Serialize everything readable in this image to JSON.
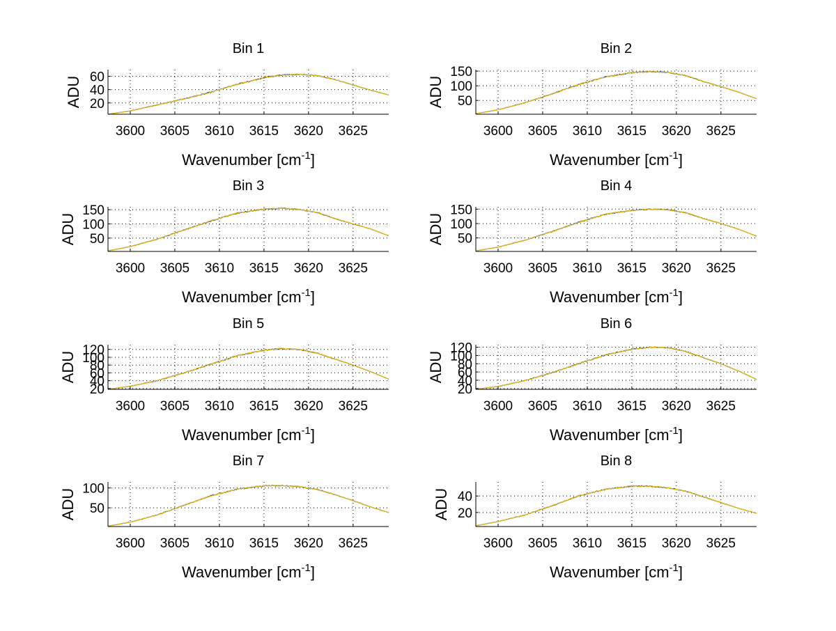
{
  "chart_data": [
    {
      "type": "line",
      "title": "Bin 1",
      "xlabel": "Wavenumber [cm-1]",
      "ylabel": "ADU",
      "xlim": [
        3597.5,
        3629
      ],
      "ylim": [
        3,
        70
      ],
      "xticks": [
        3600,
        3605,
        3610,
        3615,
        3620,
        3625
      ],
      "yticks": [
        20,
        40,
        60
      ],
      "grid": true,
      "series": [
        {
          "color": "#1f3fa0",
          "x": [
            3597.5,
            3600,
            3603,
            3606,
            3609,
            3612,
            3615,
            3617,
            3619,
            3621,
            3623,
            3625,
            3627,
            3629
          ],
          "y": [
            3,
            8,
            17,
            26,
            36,
            48,
            58,
            62,
            63,
            61,
            55,
            47,
            39,
            32
          ]
        },
        {
          "color": "#e8b800",
          "x": [
            3597.5,
            3600,
            3603,
            3606,
            3609,
            3612,
            3615,
            3617,
            3619,
            3621,
            3623,
            3625,
            3627,
            3629
          ],
          "y": [
            3,
            8,
            17,
            26,
            36,
            48,
            58,
            62,
            63,
            61,
            55,
            47,
            39,
            32
          ]
        }
      ]
    },
    {
      "type": "line",
      "title": "Bin 2",
      "xlabel": "Wavenumber [cm-1]",
      "ylabel": "ADU",
      "xlim": [
        3597.5,
        3629
      ],
      "ylim": [
        3,
        155
      ],
      "xticks": [
        3600,
        3605,
        3610,
        3615,
        3620,
        3625
      ],
      "yticks": [
        50,
        100,
        150
      ],
      "grid": true,
      "series": [
        {
          "color": "#1f3fa0",
          "x": [
            3597.5,
            3600,
            3603,
            3606,
            3609,
            3612,
            3615,
            3617,
            3619,
            3621,
            3623,
            3625,
            3627,
            3629
          ],
          "y": [
            5,
            18,
            42,
            72,
            104,
            130,
            145,
            148,
            146,
            135,
            115,
            97,
            78,
            56
          ]
        },
        {
          "color": "#e8b800",
          "x": [
            3597.5,
            3600,
            3603,
            3606,
            3609,
            3612,
            3615,
            3617,
            3619,
            3621,
            3623,
            3625,
            3627,
            3629
          ],
          "y": [
            5,
            18,
            42,
            72,
            104,
            130,
            145,
            148,
            146,
            135,
            115,
            97,
            78,
            56
          ]
        }
      ]
    },
    {
      "type": "line",
      "title": "Bin 3",
      "xlabel": "Wavenumber [cm-1]",
      "ylabel": "ADU",
      "xlim": [
        3597.5,
        3629
      ],
      "ylim": [
        3,
        160
      ],
      "xticks": [
        3600,
        3605,
        3610,
        3615,
        3620,
        3625
      ],
      "yticks": [
        50,
        100,
        150
      ],
      "grid": true,
      "series": [
        {
          "color": "#1f3fa0",
          "x": [
            3597.5,
            3600,
            3603,
            3606,
            3609,
            3612,
            3615,
            3617,
            3619,
            3621,
            3623,
            3625,
            3627,
            3629
          ],
          "y": [
            5,
            20,
            46,
            78,
            110,
            138,
            152,
            155,
            151,
            140,
            118,
            100,
            82,
            58
          ]
        },
        {
          "color": "#e8b800",
          "x": [
            3597.5,
            3600,
            3603,
            3606,
            3609,
            3612,
            3615,
            3617,
            3619,
            3621,
            3623,
            3625,
            3627,
            3629
          ],
          "y": [
            5,
            20,
            46,
            78,
            110,
            138,
            152,
            155,
            151,
            140,
            118,
            100,
            82,
            58
          ]
        }
      ]
    },
    {
      "type": "line",
      "title": "Bin 4",
      "xlabel": "Wavenumber [cm-1]",
      "ylabel": "ADU",
      "xlim": [
        3597.5,
        3629
      ],
      "ylim": [
        3,
        158
      ],
      "xticks": [
        3600,
        3605,
        3610,
        3615,
        3620,
        3625
      ],
      "yticks": [
        50,
        100,
        150
      ],
      "grid": true,
      "series": [
        {
          "color": "#1f3fa0",
          "x": [
            3597.5,
            3600,
            3603,
            3606,
            3609,
            3612,
            3615,
            3617,
            3619,
            3621,
            3623,
            3625,
            3627,
            3629
          ],
          "y": [
            5,
            18,
            42,
            72,
            104,
            132,
            146,
            150,
            148,
            138,
            118,
            100,
            80,
            56
          ]
        },
        {
          "color": "#e8b800",
          "x": [
            3597.5,
            3600,
            3603,
            3606,
            3609,
            3612,
            3615,
            3617,
            3619,
            3621,
            3623,
            3625,
            3627,
            3629
          ],
          "y": [
            5,
            18,
            42,
            72,
            104,
            132,
            146,
            150,
            148,
            138,
            118,
            100,
            80,
            56
          ]
        }
      ]
    },
    {
      "type": "line",
      "title": "Bin 5",
      "xlabel": "Wavenumber [cm-1]",
      "ylabel": "ADU",
      "xlim": [
        3597.5,
        3629
      ],
      "ylim": [
        18,
        132
      ],
      "xticks": [
        3600,
        3605,
        3610,
        3615,
        3620,
        3625
      ],
      "yticks": [
        20,
        40,
        60,
        80,
        100,
        120
      ],
      "yticklabels": [
        "20",
        "40",
        "60",
        "80",
        "100",
        "120"
      ],
      "grid": true,
      "series": [
        {
          "color": "#1f3fa0",
          "x": [
            3597.5,
            3600,
            3603,
            3606,
            3609,
            3612,
            3615,
            3617,
            3619,
            3621,
            3623,
            3625,
            3627,
            3629
          ],
          "y": [
            18,
            26,
            40,
            60,
            82,
            104,
            118,
            122,
            120,
            110,
            95,
            80,
            63,
            44
          ]
        },
        {
          "color": "#e8b800",
          "x": [
            3597.5,
            3600,
            3603,
            3606,
            3609,
            3612,
            3615,
            3617,
            3619,
            3621,
            3623,
            3625,
            3627,
            3629
          ],
          "y": [
            18,
            26,
            40,
            60,
            82,
            104,
            118,
            122,
            120,
            110,
            95,
            80,
            63,
            44
          ]
        }
      ]
    },
    {
      "type": "line",
      "title": "Bin 6",
      "xlabel": "Wavenumber [cm-1]",
      "ylabel": "ADU",
      "xlim": [
        3597.5,
        3629
      ],
      "ylim": [
        18,
        126
      ],
      "xticks": [
        3600,
        3605,
        3610,
        3615,
        3620,
        3625
      ],
      "yticks": [
        20,
        40,
        60,
        80,
        100,
        120
      ],
      "yticklabels": [
        "20",
        "40",
        "60",
        "80",
        "100",
        "120"
      ],
      "grid": true,
      "series": [
        {
          "color": "#1f3fa0",
          "x": [
            3597.5,
            3600,
            3603,
            3606,
            3609,
            3612,
            3615,
            3617,
            3619,
            3621,
            3623,
            3625,
            3627,
            3629
          ],
          "y": [
            18,
            25,
            39,
            58,
            80,
            101,
            115,
            120,
            119,
            110,
            95,
            80,
            62,
            42
          ]
        },
        {
          "color": "#e8b800",
          "x": [
            3597.5,
            3600,
            3603,
            3606,
            3609,
            3612,
            3615,
            3617,
            3619,
            3621,
            3623,
            3625,
            3627,
            3629
          ],
          "y": [
            18,
            25,
            39,
            58,
            80,
            101,
            115,
            120,
            119,
            110,
            95,
            80,
            62,
            42
          ]
        }
      ]
    },
    {
      "type": "line",
      "title": "Bin 7",
      "xlabel": "Wavenumber [cm-1]",
      "ylabel": "ADU",
      "xlim": [
        3597.5,
        3629
      ],
      "ylim": [
        3,
        115
      ],
      "xticks": [
        3600,
        3605,
        3610,
        3615,
        3620,
        3625
      ],
      "yticks": [
        50,
        100
      ],
      "grid": true,
      "series": [
        {
          "color": "#1f3fa0",
          "x": [
            3597.5,
            3600,
            3603,
            3606,
            3609,
            3612,
            3615,
            3617,
            3619,
            3621,
            3623,
            3625,
            3627,
            3629
          ],
          "y": [
            4,
            14,
            32,
            56,
            80,
            97,
            105,
            106,
            103,
            96,
            83,
            68,
            52,
            38
          ]
        },
        {
          "color": "#e8b800",
          "x": [
            3597.5,
            3600,
            3603,
            3606,
            3609,
            3612,
            3615,
            3617,
            3619,
            3621,
            3623,
            3625,
            3627,
            3629
          ],
          "y": [
            4,
            14,
            32,
            56,
            80,
            97,
            105,
            106,
            103,
            96,
            83,
            68,
            52,
            38
          ]
        }
      ]
    },
    {
      "type": "line",
      "title": "Bin 8",
      "xlabel": "Wavenumber [cm-1]",
      "ylabel": "ADU",
      "xlim": [
        3597.5,
        3629
      ],
      "ylim": [
        3,
        57
      ],
      "xticks": [
        3600,
        3605,
        3610,
        3615,
        3620,
        3625
      ],
      "yticks": [
        20,
        40
      ],
      "grid": true,
      "series": [
        {
          "color": "#1f3fa0",
          "x": [
            3597.5,
            3600,
            3603,
            3606,
            3609,
            3612,
            3615,
            3617,
            3619,
            3621,
            3623,
            3625,
            3627,
            3629
          ],
          "y": [
            4,
            9,
            17,
            28,
            40,
            48,
            52,
            52,
            50,
            46,
            39,
            32,
            25,
            19
          ]
        },
        {
          "color": "#e8b800",
          "x": [
            3597.5,
            3600,
            3603,
            3606,
            3609,
            3612,
            3615,
            3617,
            3619,
            3621,
            3623,
            3625,
            3627,
            3629
          ],
          "y": [
            4,
            9,
            17,
            28,
            40,
            48,
            52,
            52,
            50,
            46,
            39,
            32,
            25,
            19
          ]
        }
      ]
    }
  ]
}
